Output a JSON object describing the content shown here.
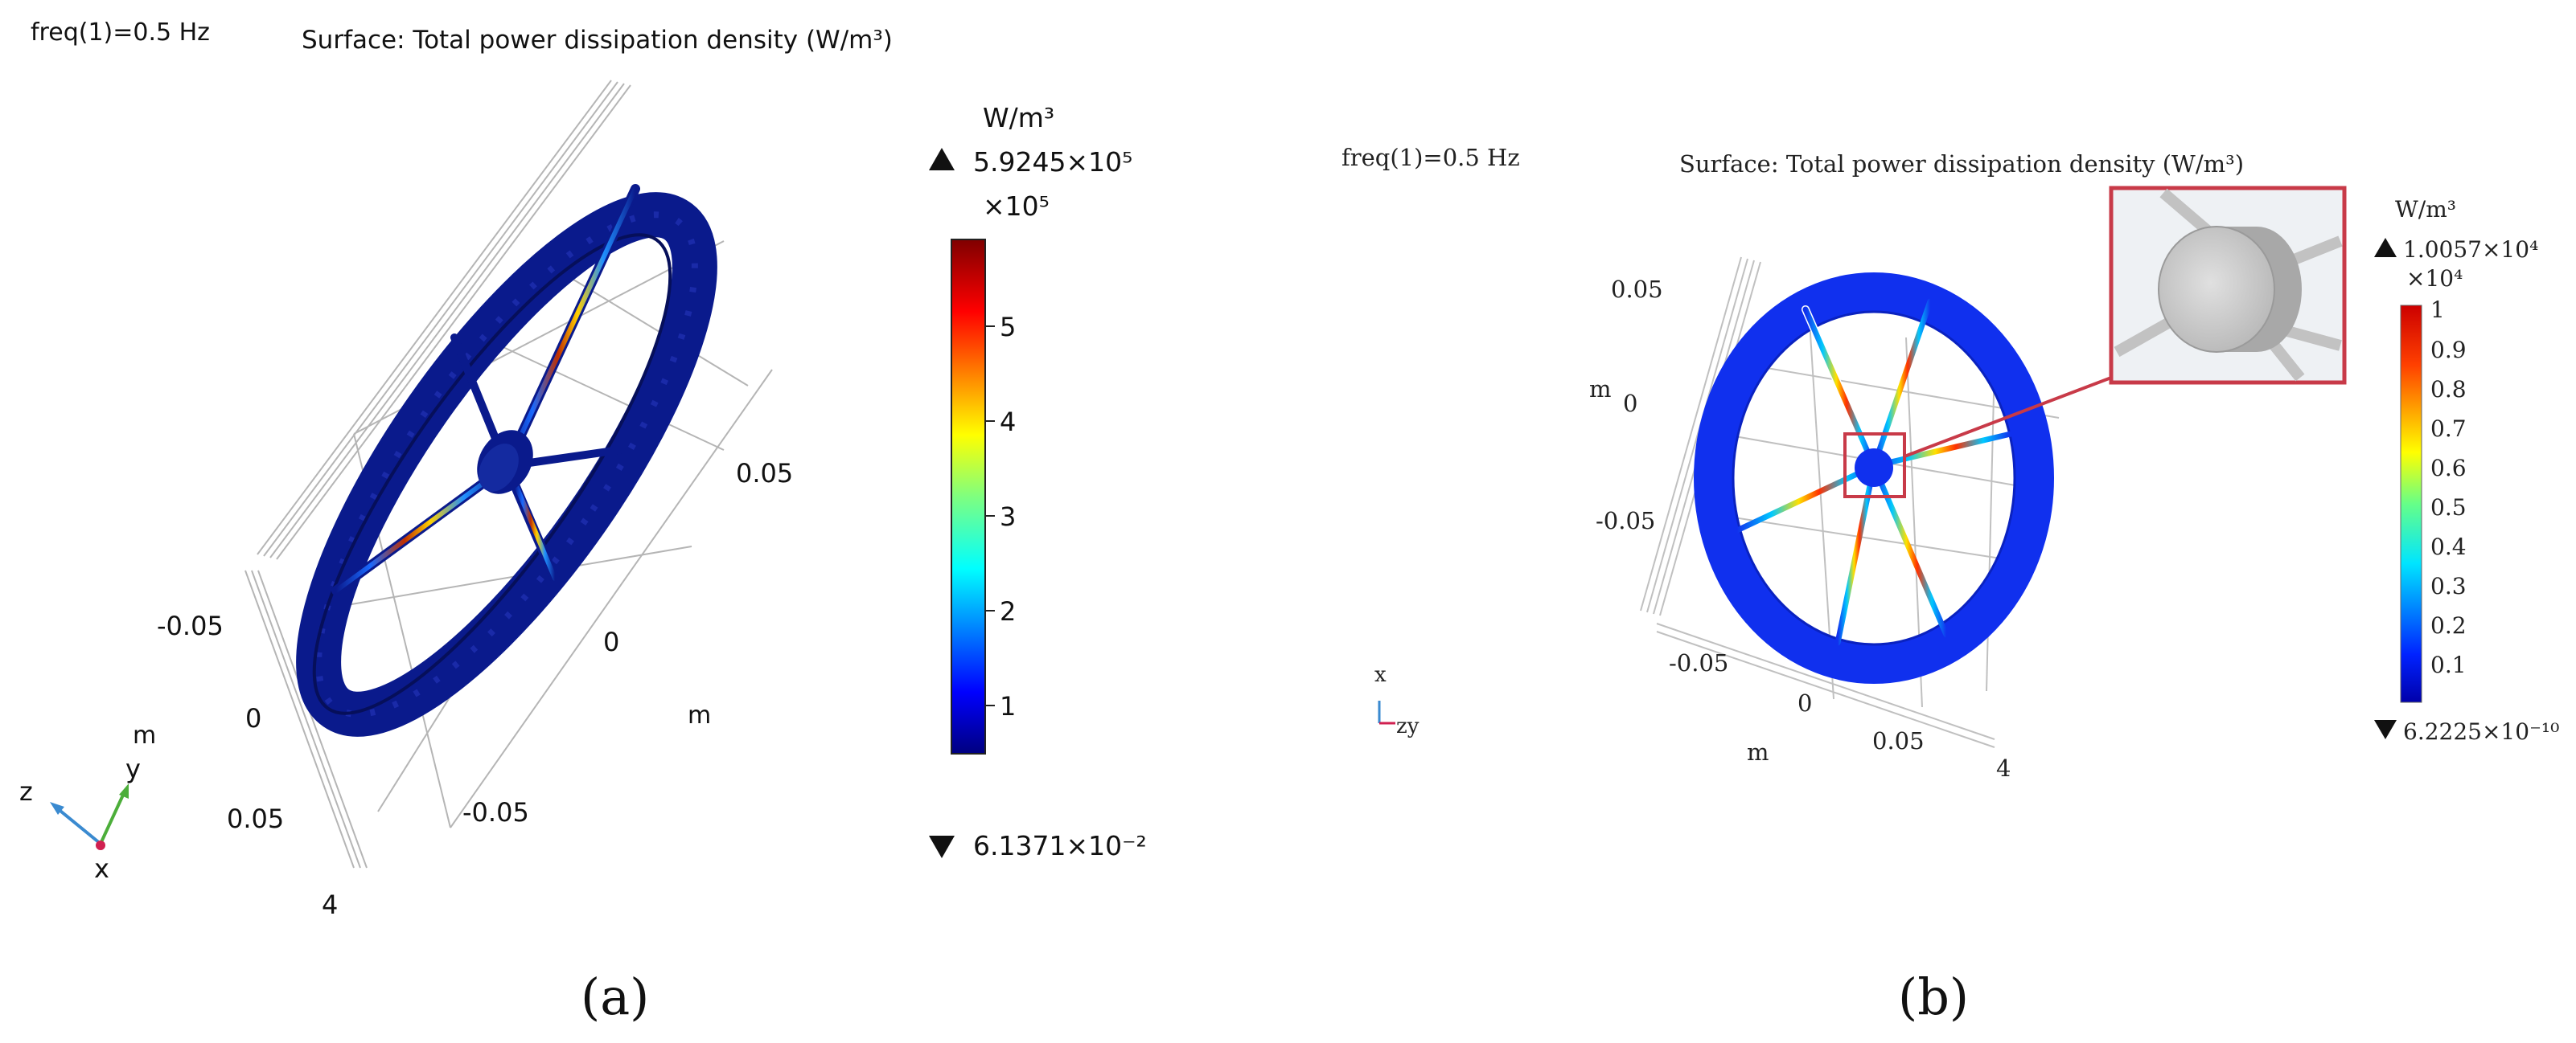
{
  "panel_a": {
    "freq_label": "freq(1)=0.5 Hz",
    "surface_title": "Surface: Total power dissipation density (W/m³)",
    "unit": "W/m³",
    "max_value": "5.9245×10⁵",
    "multiplier": "×10⁵",
    "min_value": "6.1371×10⁻²",
    "colorbar_ticks": [
      "5",
      "4",
      "3",
      "2",
      "1"
    ],
    "axis_labels": [
      "0.05",
      "-0.05",
      "0",
      "-0.05",
      "0",
      "0.05",
      "4"
    ],
    "unit_labels": [
      "m",
      "m"
    ],
    "triad": {
      "x": "x",
      "y": "y",
      "z": "z"
    },
    "caption": "(a)"
  },
  "panel_b": {
    "freq_label": "freq(1)=0.5 Hz",
    "surface_title": "Surface: Total power dissipation density (W/m³)",
    "unit": "W/m³",
    "max_value": "1.0057×10⁴",
    "multiplier": "×10⁴",
    "min_value": "6.2225×10⁻¹⁰",
    "colorbar_ticks": [
      "1",
      "0.9",
      "0.8",
      "0.7",
      "0.6",
      "0.5",
      "0.4",
      "0.3",
      "0.2",
      "0.1"
    ],
    "axis_labels": [
      "0.05",
      "0",
      "-0.05",
      "-0.05",
      "0",
      "0.05",
      "4"
    ],
    "unit_labels": [
      "m",
      "m"
    ],
    "triad": {
      "x": "x",
      "zy": "zy"
    },
    "caption": "(b)"
  },
  "colors": {
    "wheel_dark": "#0a1a8c",
    "wheel_blue": "#1030ee",
    "inset_border": "#c83a48",
    "grid": "#b9b9b9"
  }
}
